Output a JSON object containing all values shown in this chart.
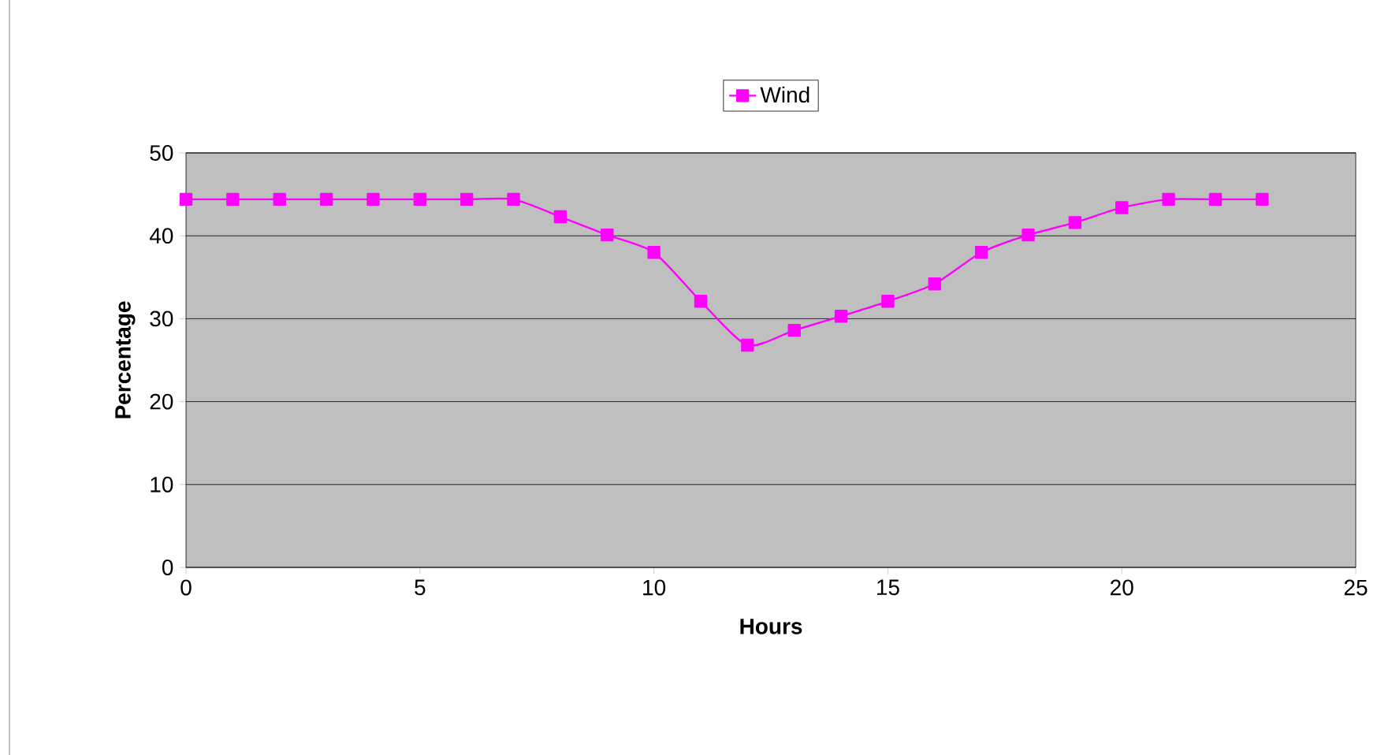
{
  "chart_data": {
    "type": "line",
    "xlabel": "Hours",
    "ylabel": "Percentage",
    "x": [
      0,
      1,
      2,
      3,
      4,
      5,
      6,
      7,
      8,
      9,
      10,
      11,
      12,
      13,
      14,
      15,
      16,
      17,
      18,
      19,
      20,
      21,
      22,
      23
    ],
    "series": [
      {
        "name": "Wind",
        "color": "#ff00ff",
        "values": [
          44.4,
          44.4,
          44.4,
          44.4,
          44.4,
          44.4,
          44.4,
          44.4,
          42.3,
          40.1,
          38.0,
          32.1,
          26.8,
          28.6,
          30.3,
          32.1,
          34.2,
          38.0,
          40.1,
          41.6,
          43.4,
          44.4,
          44.4,
          44.4
        ]
      }
    ],
    "xlim": [
      0,
      25
    ],
    "xticks": [
      0,
      5,
      10,
      15,
      20,
      25
    ],
    "ylim": [
      0,
      50
    ],
    "yticks": [
      0,
      10,
      20,
      30,
      40,
      50
    ],
    "grid": "y",
    "legend": "top",
    "marker": "square",
    "line_style": "solid"
  }
}
